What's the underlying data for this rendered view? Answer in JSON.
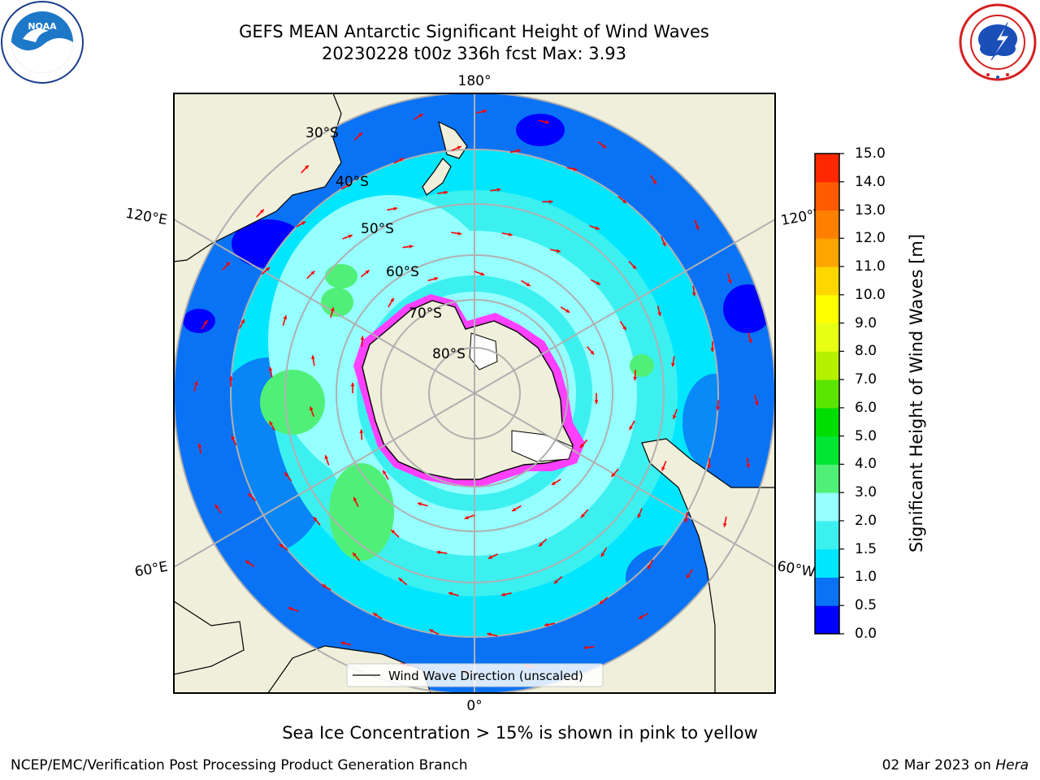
{
  "header": {
    "title_line1": "GEFS MEAN Antarctic Significant Height of Wind Waves",
    "title_line2": "20230228 t00z 336h fcst   Max: 3.93",
    "left_logo": "noaa-logo",
    "right_logo": "national-weather-service-logo"
  },
  "map": {
    "projection": "south-polar-stereographic",
    "longitude_labels": {
      "top": "180°",
      "bottom": "0°",
      "upper_left": "120°E",
      "upper_right": "120°W",
      "lower_left": "60°E",
      "lower_right": "60°W"
    },
    "latitude_labels": [
      "30°S",
      "40°S",
      "50°S",
      "60°S",
      "70°S",
      "80°S"
    ],
    "legend_label": "Wind Wave Direction (unscaled)",
    "arrow_color": "#ff0000"
  },
  "colorbar": {
    "label": "Significant Height of Wind Waves [m]",
    "ticks": [
      "0.0",
      "0.5",
      "1.0",
      "1.5",
      "2.0",
      "3.0",
      "4.0",
      "5.0",
      "6.0",
      "7.0",
      "8.0",
      "9.0",
      "10.0",
      "11.0",
      "12.0",
      "13.0",
      "14.0",
      "15.0"
    ],
    "colors": [
      "#0000ff",
      "#0a73f5",
      "#00e6ff",
      "#3cf0f0",
      "#96ffff",
      "#50f078",
      "#00e632",
      "#00dd00",
      "#5ae600",
      "#b4f000",
      "#e6ff14",
      "#ffff00",
      "#ffd700",
      "#ffa500",
      "#ff8000",
      "#ff5a00",
      "#ff2800"
    ]
  },
  "footer": {
    "note": "Sea Ice Concentration > 15% is shown in pink to yellow",
    "left": "NCEP/EMC/Verification Post Processing Product Generation Branch",
    "right_date": "02 Mar 2023 on ",
    "right_host": "Hera"
  }
}
